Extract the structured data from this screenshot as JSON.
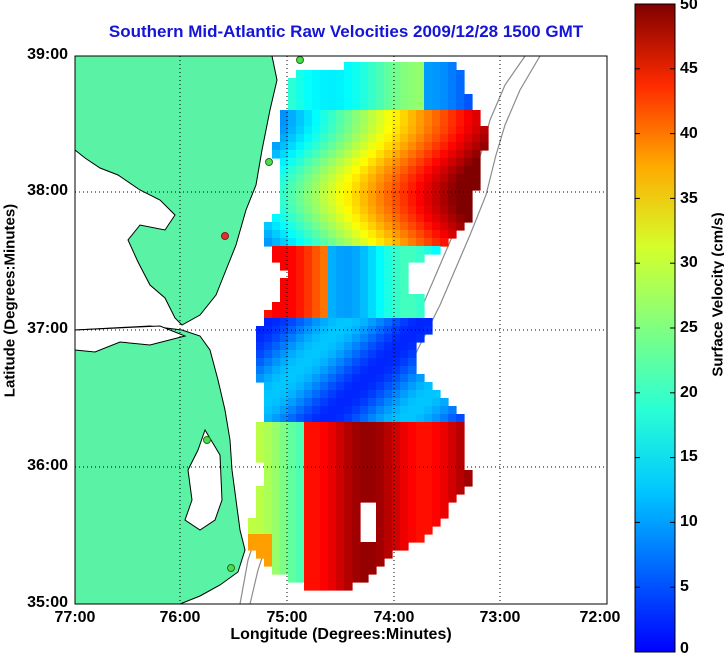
{
  "title": "Southern Mid-Atlantic Raw Velocities 2009/12/28 1500 GMT",
  "x_axis": {
    "label": "Longitude (Degrees:Minutes)",
    "ticks": [
      "77:00",
      "76:00",
      "75:00",
      "74:00",
      "73:00",
      "72:00"
    ]
  },
  "y_axis": {
    "label": "Latitude (Degrees:Minutes)",
    "ticks": [
      "39:00",
      "38:00",
      "37:00",
      "36:00",
      "35:00"
    ]
  },
  "colorbar": {
    "label": "Surface Velocity (cm/s)",
    "ticks": [
      "50",
      "45",
      "40",
      "35",
      "30",
      "25",
      "20",
      "15",
      "10",
      "5",
      "0"
    ],
    "min": 0,
    "max": 50
  },
  "colors": {
    "title": "#1515d8",
    "land": "#5af3a5",
    "water": "#ffffff",
    "coastline": "#000000",
    "bathymetry": "#8c8c8c",
    "grid": "#000000"
  },
  "map": {
    "lon_range": [
      -77,
      -72
    ],
    "lat_range": [
      35,
      39
    ],
    "grid": "dotted",
    "coloring": "velocity-magnitude",
    "arrows": "black"
  }
}
